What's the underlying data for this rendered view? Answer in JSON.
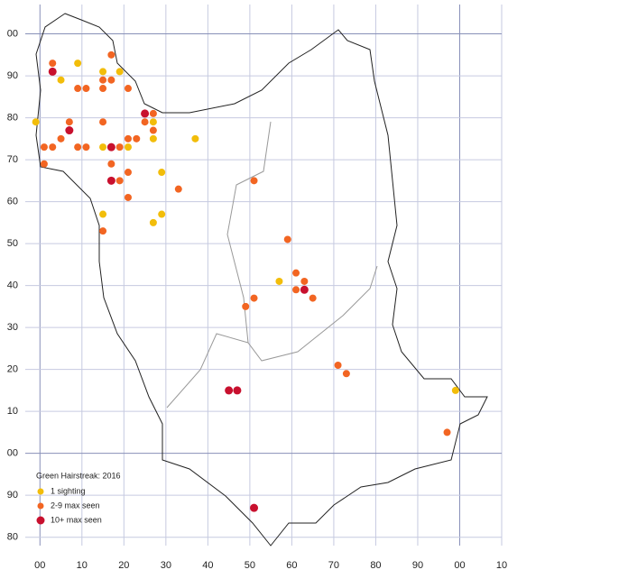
{
  "chart_data": {
    "type": "scatter",
    "title": "Green Hairstreak:  2016",
    "xlim": [
      -3.5,
      110
    ],
    "ylim": [
      -22,
      107
    ],
    "xticks": [
      {
        "value": 0,
        "label": "00"
      },
      10,
      20,
      30,
      40,
      50,
      60,
      70,
      80,
      90,
      {
        "value": 100,
        "label": "00"
      },
      {
        "value": 110,
        "label": "10"
      }
    ],
    "yticks": [
      {
        "value": 100,
        "label": "00"
      },
      90,
      80,
      70,
      60,
      50,
      40,
      30,
      20,
      10,
      {
        "value": 0,
        "label": "00"
      },
      {
        "value": -10,
        "label": "90"
      },
      {
        "value": -20,
        "label": "80"
      }
    ],
    "grid": true,
    "series": [
      {
        "name": "1 sighting",
        "color": "#f2bd0a",
        "x": [
          -1,
          5,
          9,
          15,
          19,
          27,
          37,
          21,
          15,
          27,
          29,
          15,
          29,
          27,
          57,
          99
        ],
        "values": [
          79,
          89,
          93,
          91,
          91,
          79,
          75,
          73,
          73,
          75,
          67,
          57,
          57,
          55,
          41,
          15
        ]
      },
      {
        "name": "2-9 max seen",
        "color": "#f26522",
        "x": [
          3,
          17,
          9,
          11,
          15,
          17,
          15,
          21,
          7,
          15,
          25,
          27,
          27,
          1,
          3,
          9,
          11,
          19,
          5,
          21,
          23,
          1,
          17,
          21,
          19,
          33,
          21,
          15,
          51,
          59,
          61,
          63,
          61,
          65,
          51,
          49,
          71,
          73,
          97
        ],
        "values": [
          93,
          95,
          87,
          87,
          89,
          89,
          87,
          87,
          79,
          79,
          79,
          81,
          77,
          73,
          73,
          73,
          73,
          73,
          75,
          75,
          75,
          69,
          69,
          67,
          65,
          63,
          61,
          53,
          65,
          51,
          43,
          41,
          39,
          37,
          37,
          35,
          21,
          19,
          5
        ]
      },
      {
        "name": "10+ max seen",
        "color": "#c8102e",
        "x": [
          3,
          7,
          25,
          17,
          17,
          45,
          47,
          63,
          51
        ],
        "values": [
          91,
          77,
          81,
          73,
          65,
          15,
          15,
          39,
          -13
        ]
      }
    ]
  }
}
